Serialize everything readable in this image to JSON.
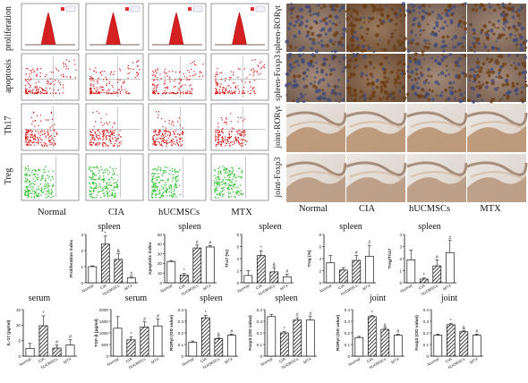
{
  "flow": {
    "row_labels": [
      "proliferation",
      "apoptosis",
      "Th17",
      "Treg"
    ],
    "col_labels": [
      "Normal",
      "CIA",
      "hUCMSCs",
      "MTX"
    ]
  },
  "ihc": {
    "row_labels": [
      "spleen-RORγt",
      "spleen-Foxp3",
      "joint-RORγt",
      "joint-Foxp3"
    ],
    "col_labels": [
      "Normal",
      "CIA",
      "hUCMSCs",
      "MTX"
    ]
  },
  "charts": {
    "row1_titles": [
      "spleen",
      "spleen",
      "spleen",
      "spleen",
      "spleen"
    ],
    "row2_titles": [
      "serum",
      "serum",
      "spleen",
      "spleen",
      "joint",
      "joint"
    ],
    "categories": [
      "Normal",
      "CIA",
      "hUCMSCs",
      "MTX"
    ]
  },
  "chart_data": [
    {
      "type": "bar",
      "title": "spleen",
      "ylabel": "Proliferation index",
      "categories": [
        "Normal",
        "CIA",
        "hUCMSCs",
        "MTX"
      ],
      "values": [
        1.0,
        2.4,
        1.45,
        0.3
      ],
      "errors": [
        0.05,
        0.5,
        0.35,
        0.1
      ],
      "ylim": [
        0,
        3
      ],
      "yticks": [
        0,
        1,
        2,
        3
      ],
      "marks": [
        "",
        "*",
        "&",
        "#"
      ]
    },
    {
      "type": "bar",
      "title": "spleen",
      "ylabel": "Apoptotic index",
      "categories": [
        "Normal",
        "CIA",
        "hUCMSCs",
        "MTX"
      ],
      "values": [
        22,
        8,
        36,
        37
      ],
      "errors": [
        1,
        1.5,
        3,
        1.5
      ],
      "ylim": [
        0,
        50
      ],
      "yticks": [
        0,
        10,
        20,
        30,
        40,
        50
      ],
      "marks": [
        "",
        "*",
        "#",
        "#"
      ]
    },
    {
      "type": "bar",
      "title": "spleen",
      "ylabel": "Th17 (%)",
      "categories": [
        "Normal",
        "CIA",
        "hUCMSCs",
        "MTX"
      ],
      "values": [
        1.2,
        4.5,
        1.8,
        1.0
      ],
      "errors": [
        0.8,
        0.8,
        0.7,
        0.4
      ],
      "ylim": [
        0,
        8
      ],
      "yticks": [
        0,
        2,
        4,
        6,
        8
      ],
      "marks": [
        "",
        "*",
        "&",
        "#"
      ]
    },
    {
      "type": "bar",
      "title": "spleen",
      "ylabel": "Treg (%)",
      "categories": [
        "Normal",
        "CIA",
        "hUCMSCs",
        "MTX"
      ],
      "values": [
        3.3,
        2.1,
        3.7,
        4.4
      ],
      "errors": [
        1.2,
        0.4,
        0.8,
        1.8
      ],
      "ylim": [
        0,
        8
      ],
      "yticks": [
        0,
        2,
        4,
        6,
        8
      ],
      "marks": [
        "",
        "",
        "#",
        "#"
      ]
    },
    {
      "type": "bar",
      "title": "spleen",
      "ylabel": "Treg/Th17",
      "categories": [
        "Normal",
        "CIA",
        "hUCMSCs",
        "MTX"
      ],
      "values": [
        1.9,
        0.3,
        1.4,
        2.5
      ],
      "errors": [
        0.8,
        0.1,
        0.5,
        1.0
      ],
      "ylim": [
        0,
        4
      ],
      "yticks": [
        0,
        1,
        2,
        3,
        4
      ],
      "marks": [
        "",
        "*",
        "#",
        "#"
      ]
    },
    {
      "type": "bar",
      "title": "serum",
      "ylabel": "IL-17 (pg/ml)",
      "categories": [
        "Normal",
        "CIA",
        "hUCMSCs",
        "MTX"
      ],
      "values": [
        2.5,
        9.8,
        2.6,
        3.6
      ],
      "errors": [
        1.6,
        3.2,
        1.0,
        1.7
      ],
      "ylim": [
        0,
        15
      ],
      "yticks": [
        0,
        5,
        10,
        15
      ],
      "marks": [
        "",
        "*",
        "#",
        "#"
      ]
    },
    {
      "type": "bar",
      "title": "serum",
      "ylabel": "TGF-β (pg/ml)",
      "categories": [
        "Normal",
        "CIA",
        "hUCMSCs",
        "MTX"
      ],
      "values": [
        1200,
        700,
        1250,
        1300
      ],
      "errors": [
        500,
        120,
        220,
        300
      ],
      "ylim": [
        0,
        2000
      ],
      "yticks": [
        0,
        500,
        1000,
        1500,
        2000
      ],
      "marks": [
        "",
        "*",
        "#",
        "#"
      ]
    },
    {
      "type": "bar",
      "title": "spleen",
      "ylabel": "RORγt (OD value)",
      "categories": [
        "Normal",
        "CIA",
        "hUCMSCs",
        "MTX"
      ],
      "values": [
        0.12,
        0.33,
        0.15,
        0.18
      ],
      "errors": [
        0.01,
        0.02,
        0.01,
        0.01
      ],
      "ylim": [
        0,
        0.4
      ],
      "yticks": [
        0,
        0.1,
        0.2,
        0.3,
        0.4
      ],
      "marks": [
        "",
        "*",
        "&",
        "#"
      ]
    },
    {
      "type": "bar",
      "title": "spleen",
      "ylabel": "Foxp3 (OD value)",
      "categories": [
        "Normal",
        "CIA",
        "hUCMSCs",
        "MTX"
      ],
      "values": [
        0.34,
        0.2,
        0.31,
        0.31
      ],
      "errors": [
        0.02,
        0.01,
        0.02,
        0.03
      ],
      "ylim": [
        0,
        0.4
      ],
      "yticks": [
        0,
        0.1,
        0.2,
        0.3,
        0.4
      ],
      "marks": [
        "",
        "*",
        "#",
        "#"
      ]
    },
    {
      "type": "bar",
      "title": "joint",
      "ylabel": "RORγt (OD value)",
      "categories": [
        "Normal",
        "CIA",
        "hUCMSCs",
        "MTX"
      ],
      "values": [
        0.16,
        0.34,
        0.23,
        0.18
      ],
      "errors": [
        0.01,
        0.01,
        0.01,
        0.01
      ],
      "ylim": [
        0,
        0.4
      ],
      "yticks": [
        0,
        0.1,
        0.2,
        0.3,
        0.4
      ],
      "marks": [
        "",
        "*",
        "&",
        "#"
      ]
    },
    {
      "type": "bar",
      "title": "joint",
      "ylabel": "Foxp3 (OD value)",
      "categories": [
        "Normal",
        "CIA",
        "hUCMSCs",
        "MTX"
      ],
      "values": [
        0.18,
        0.27,
        0.21,
        0.18
      ],
      "errors": [
        0.01,
        0.01,
        0.01,
        0.01
      ],
      "ylim": [
        0,
        0.4
      ],
      "yticks": [
        0,
        0.1,
        0.2,
        0.3,
        0.4
      ],
      "marks": [
        "",
        "*",
        "&",
        "#"
      ]
    }
  ]
}
